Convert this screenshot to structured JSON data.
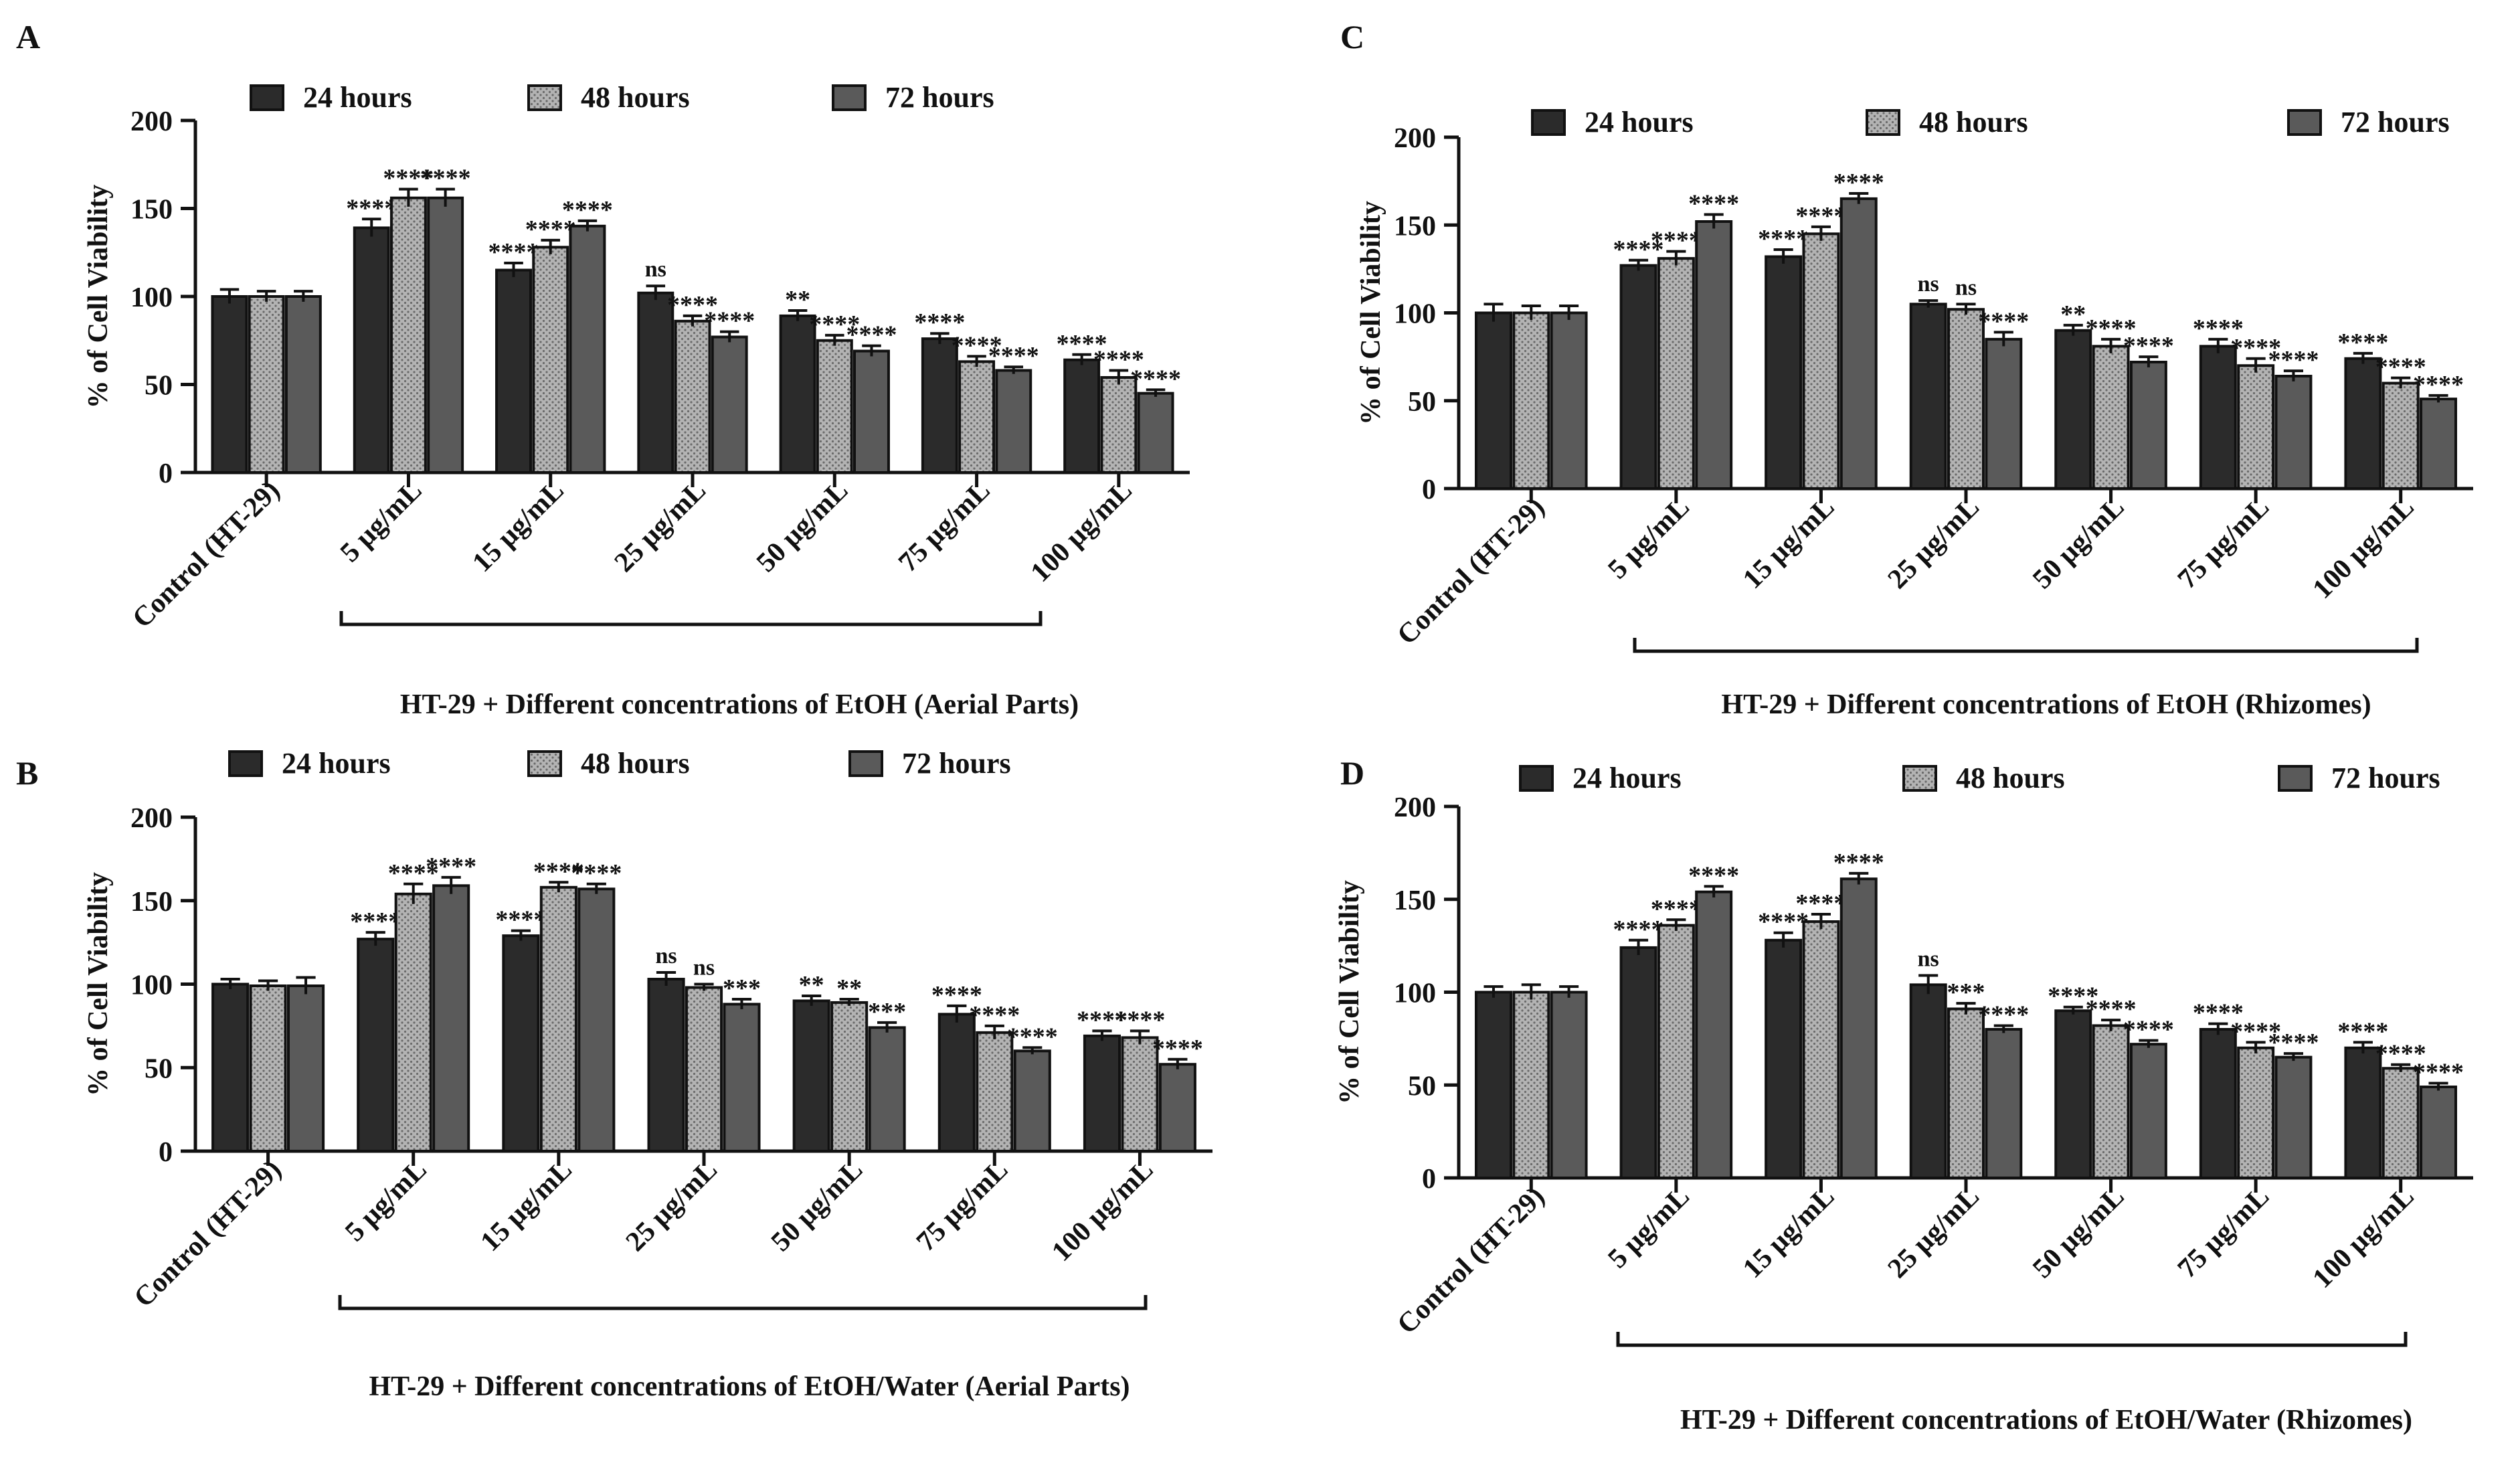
{
  "figure": {
    "legend_labels": [
      "24 hours",
      "48 hours",
      "72 hours"
    ],
    "ylabel": "% of Cell Viability",
    "categories": [
      "Control (HT-29)",
      "5 µg/mL",
      "15 µg/mL",
      "25 µg/mL",
      "50 µg/mL",
      "75 µg/mL",
      "100 µg/mL"
    ],
    "series_colors": {
      "24 hours": "#2b2b2b",
      "48 hours": "#b3b3b3",
      "72 hours": "#5a5a5a"
    }
  },
  "chart_data": [
    {
      "panel": "A",
      "type": "bar",
      "title": "",
      "xlabel": "HT-29 + Different concentrations of EtOH (Aerial Parts)",
      "ylabel": "% of Cell Viability",
      "ylim": [
        0,
        200
      ],
      "yticks": [
        0,
        50,
        100,
        150,
        200
      ],
      "categories": [
        "Control (HT-29)",
        "5 µg/mL",
        "15 µg/mL",
        "25 µg/mL",
        "50 µg/mL",
        "75 µg/mL",
        "100 µg/mL"
      ],
      "series": [
        {
          "name": "24 hours",
          "values": [
            100,
            139,
            115,
            102,
            89,
            76,
            64
          ],
          "errors": [
            4,
            5,
            4,
            4,
            3,
            3,
            3
          ],
          "annotations": [
            "",
            "****",
            "****",
            "ns",
            "**",
            "****",
            "****"
          ]
        },
        {
          "name": "48 hours",
          "values": [
            100,
            156,
            128,
            86,
            75,
            63,
            54
          ],
          "errors": [
            3,
            5,
            4,
            3,
            3,
            3,
            4
          ],
          "annotations": [
            "",
            "****",
            "****",
            "****",
            "****",
            "****",
            "****"
          ]
        },
        {
          "name": "72 hours",
          "values": [
            100,
            156,
            140,
            77,
            69,
            58,
            45
          ],
          "errors": [
            3,
            5,
            3,
            3,
            3,
            2,
            2
          ],
          "annotations": [
            "",
            "****",
            "****",
            "****",
            "****",
            "****",
            "****"
          ]
        }
      ]
    },
    {
      "panel": "B",
      "type": "bar",
      "title": "",
      "xlabel": "HT-29 + Different concentrations of EtOH/Water (Aerial Parts)",
      "ylabel": "% of Cell Viability",
      "ylim": [
        0,
        200
      ],
      "yticks": [
        0,
        50,
        100,
        150,
        200
      ],
      "categories": [
        "Control (HT-29)",
        "5 µg/mL",
        "15 µg/mL",
        "25 µg/mL",
        "50 µg/mL",
        "75 µg/mL",
        "100 µg/mL"
      ],
      "series": [
        {
          "name": "24 hours",
          "values": [
            100,
            127,
            129,
            103,
            90,
            82,
            69
          ],
          "errors": [
            3,
            4,
            3,
            4,
            3,
            5,
            3
          ],
          "annotations": [
            "",
            "****",
            "****",
            "ns",
            "**",
            "****",
            "****"
          ]
        },
        {
          "name": "48 hours",
          "values": [
            99,
            154,
            158,
            98,
            89,
            71,
            68
          ],
          "errors": [
            3,
            6,
            3,
            2,
            2,
            4,
            4
          ],
          "annotations": [
            "",
            "****",
            "****",
            "ns",
            "**",
            "****",
            "****"
          ]
        },
        {
          "name": "72 hours",
          "values": [
            99,
            159,
            157,
            88,
            74,
            60,
            52
          ],
          "errors": [
            5,
            5,
            3,
            3,
            3,
            2,
            3
          ],
          "annotations": [
            "",
            "****",
            "****",
            "***",
            "***",
            "****",
            "****"
          ]
        }
      ]
    },
    {
      "panel": "C",
      "type": "bar",
      "title": "",
      "xlabel": "HT-29 + Different concentrations of EtOH (Rhizomes)",
      "ylabel": "% of Cell Viability",
      "ylim": [
        0,
        200
      ],
      "yticks": [
        0,
        50,
        100,
        150,
        200
      ],
      "categories": [
        "Control (HT-29)",
        "5 µg/mL",
        "15 µg/mL",
        "25 µg/mL",
        "50 µg/mL",
        "75 µg/mL",
        "100 µg/mL"
      ],
      "series": [
        {
          "name": "24 hours",
          "values": [
            100,
            127,
            132,
            105,
            90,
            81,
            74
          ],
          "errors": [
            5,
            3,
            4,
            2,
            3,
            4,
            3
          ],
          "annotations": [
            "",
            "****",
            "****",
            "ns",
            "**",
            "****",
            "****"
          ]
        },
        {
          "name": "48 hours",
          "values": [
            100,
            131,
            145,
            102,
            81,
            70,
            60
          ],
          "errors": [
            4,
            4,
            4,
            3,
            4,
            4,
            3
          ],
          "annotations": [
            "",
            "****",
            "****",
            "ns",
            "****",
            "****",
            "****"
          ]
        },
        {
          "name": "72 hours",
          "values": [
            100,
            152,
            165,
            85,
            72,
            64,
            51
          ],
          "errors": [
            4,
            4,
            3,
            4,
            3,
            3,
            2
          ],
          "annotations": [
            "",
            "****",
            "****",
            "****",
            "****",
            "****",
            "****"
          ]
        }
      ]
    },
    {
      "panel": "D",
      "type": "bar",
      "title": "",
      "xlabel": "HT-29 + Different concentrations of EtOH/Water (Rhizomes)",
      "ylabel": "% of Cell Viability",
      "ylim": [
        0,
        200
      ],
      "yticks": [
        0,
        50,
        100,
        150,
        200
      ],
      "categories": [
        "Control (HT-29)",
        "5 µg/mL",
        "15 µg/mL",
        "25 µg/mL",
        "50 µg/mL",
        "75 µg/mL",
        "100 µg/mL"
      ],
      "series": [
        {
          "name": "24 hours",
          "values": [
            100,
            124,
            128,
            104,
            90,
            80,
            70
          ],
          "errors": [
            3,
            4,
            4,
            5,
            2,
            3,
            3
          ],
          "annotations": [
            "",
            "****",
            "****",
            "ns",
            "****",
            "****",
            "****"
          ]
        },
        {
          "name": "48 hours",
          "values": [
            100,
            136,
            138,
            91,
            82,
            70,
            59
          ],
          "errors": [
            4,
            3,
            4,
            3,
            3,
            3,
            2
          ],
          "annotations": [
            "",
            "****",
            "****",
            "***",
            "****",
            "****",
            "****"
          ]
        },
        {
          "name": "72 hours",
          "values": [
            100,
            154,
            161,
            80,
            72,
            65,
            49
          ],
          "errors": [
            3,
            3,
            3,
            2,
            2,
            2,
            2
          ],
          "annotations": [
            "",
            "****",
            "****",
            "****",
            "****",
            "****",
            "****"
          ]
        }
      ]
    }
  ]
}
